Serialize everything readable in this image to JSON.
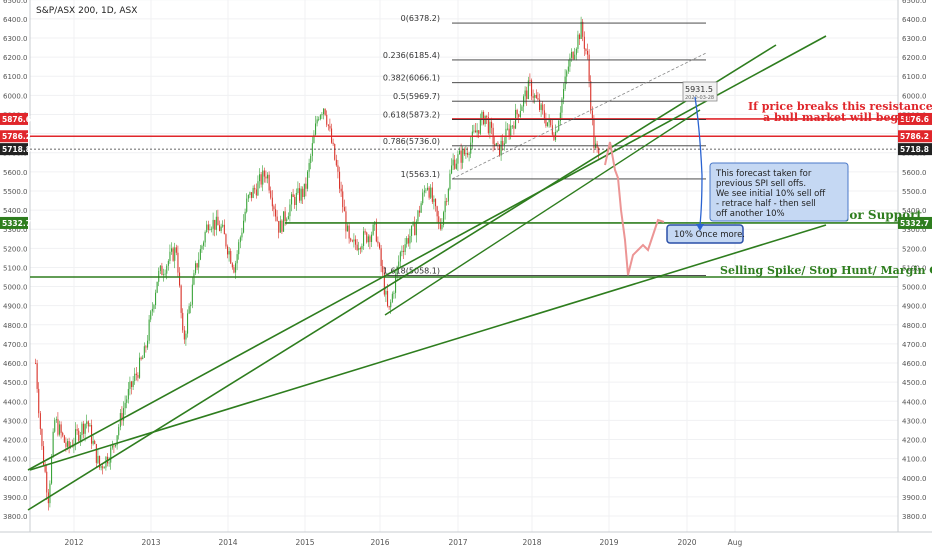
{
  "header": {
    "symbol_title": "S&P/ASX 200, 1D, ASX"
  },
  "chart_data": {
    "type": "candlestick",
    "y_ticks": [
      3800,
      3900,
      4000,
      4100,
      4200,
      4300,
      4400,
      4500,
      4600,
      4700,
      4800,
      4900,
      5000,
      5100,
      5200,
      5300,
      5400,
      5500,
      5600,
      5700,
      5800,
      5900,
      6000,
      6100,
      6200,
      6300,
      6400,
      6500
    ],
    "x_labels": [
      "2012",
      "2013",
      "2014",
      "2015",
      "2016",
      "2017",
      "2018",
      "2019",
      "2020",
      "Aug"
    ],
    "ylim": [
      3720,
      6520
    ],
    "price_badges": [
      {
        "label": "5876.6",
        "color": "#e0262b",
        "value": 5876.6
      },
      {
        "label": "5786.2",
        "color": "#e0262b",
        "value": 5786.2
      },
      {
        "label": "5718.8",
        "color": "#222222",
        "value": 5718.8
      },
      {
        "label": "5332.7",
        "color": "#2e7d1e",
        "value": 5332.7
      }
    ],
    "fib_levels": [
      {
        "label": "0(6378.2)",
        "value": 6378.2
      },
      {
        "label": "0.236(6185.4)",
        "value": 6185.4
      },
      {
        "label": "0.382(6066.1)",
        "value": 6066.1
      },
      {
        "label": "0.5(5969.7)",
        "value": 5969.7
      },
      {
        "label": "0.618(5873.2)",
        "value": 5873.2
      },
      {
        "label": "0.786(5736.0)",
        "value": 5736.0
      },
      {
        "label": "1(5563.1)",
        "value": 5563.1
      },
      {
        "label": "1.618(5058.1)",
        "value": 5058.1
      }
    ],
    "annotations": {
      "resistance_text_1": "If price breaks this resistance",
      "resistance_text_2": "a bull market will begin",
      "major_support": "Major Support",
      "selling_spike": "Selling Spike/ Stop Hunt/ Margin Calls",
      "forecast_note_1": "This forecast taken for",
      "forecast_note_2": "previous SPI sell offs.",
      "forecast_note_3": "We see initial 10% sell off",
      "forecast_note_4": "- retrace half - then sell",
      "forecast_note_5": "off another 10%",
      "ten_percent": "10% Once more.",
      "measure_value": "5931.5",
      "measure_date": "2020-03-28"
    },
    "price_path": [
      [
        "2011-07",
        4600
      ],
      [
        "2011-08",
        4150
      ],
      [
        "2011-09",
        3900
      ],
      [
        "2011-10",
        4300
      ],
      [
        "2011-12",
        4150
      ],
      [
        "2012-03",
        4300
      ],
      [
        "2012-05",
        4050
      ],
      [
        "2012-07",
        4150
      ],
      [
        "2012-09",
        4400
      ],
      [
        "2012-12",
        4650
      ],
      [
        "2013-02",
        5050
      ],
      [
        "2013-05",
        5200
      ],
      [
        "2013-06",
        4700
      ],
      [
        "2013-08",
        5100
      ],
      [
        "2013-10",
        5350
      ],
      [
        "2013-12",
        5300
      ],
      [
        "2014-02",
        5100
      ],
      [
        "2014-04",
        5450
      ],
      [
        "2014-07",
        5600
      ],
      [
        "2014-09",
        5300
      ],
      [
        "2014-11",
        5450
      ],
      [
        "2015-01",
        5500
      ],
      [
        "2015-03",
        5900
      ],
      [
        "2015-04",
        5950
      ],
      [
        "2015-06",
        5600
      ],
      [
        "2015-08",
        5200
      ],
      [
        "2015-10",
        5250
      ],
      [
        "2015-12",
        5300
      ],
      [
        "2016-02",
        4850
      ],
      [
        "2016-04",
        5200
      ],
      [
        "2016-06",
        5300
      ],
      [
        "2016-08",
        5550
      ],
      [
        "2016-10",
        5300
      ],
      [
        "2016-12",
        5650
      ],
      [
        "2017-02",
        5700
      ],
      [
        "2017-05",
        5900
      ],
      [
        "2017-07",
        5700
      ],
      [
        "2017-10",
        5900
      ],
      [
        "2017-12",
        6050
      ],
      [
        "2018-02",
        5900
      ],
      [
        "2018-04",
        5800
      ],
      [
        "2018-06",
        6150
      ],
      [
        "2018-08",
        6350
      ],
      [
        "2018-09",
        6200
      ],
      [
        "2018-10",
        5750
      ],
      [
        "2018-11",
        5650
      ]
    ]
  }
}
